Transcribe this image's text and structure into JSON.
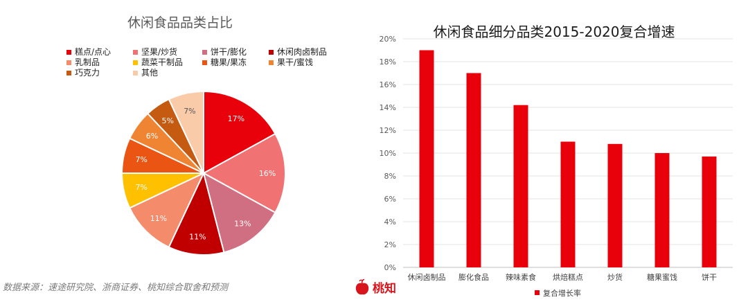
{
  "chart_data": [
    {
      "type": "pie",
      "title": "休闲食品品类占比",
      "categories": [
        "糕点/点心",
        "坚果/炒货",
        "饼干/膨化",
        "休闲肉卤制品",
        "乳制品",
        "蔬菜干制品",
        "糖果/果冻",
        "果干/蜜饯",
        "巧克力",
        "其他"
      ],
      "values": [
        17,
        16,
        13,
        11,
        11,
        7,
        7,
        6,
        5,
        7
      ],
      "data_labels": [
        "17%",
        "16%",
        "13%",
        "11%",
        "11%",
        "7%",
        "7%",
        "6%",
        "5%",
        "7%"
      ],
      "colors": [
        "#e8000b",
        "#f07272",
        "#d16f82",
        "#c00000",
        "#f48b6b",
        "#ffc000",
        "#ea5513",
        "#ef8533",
        "#c55a11",
        "#f9cba9"
      ],
      "legend_position": "top"
    },
    {
      "type": "bar",
      "title": "休闲食品细分品类2015-2020复合增速",
      "categories": [
        "休闲卤制品",
        "膨化食品",
        "辣味素食",
        "烘焙糕点",
        "炒货",
        "糖果蜜饯",
        "饼干"
      ],
      "series": [
        {
          "name": "复合增长率",
          "values": [
            19,
            17,
            14.2,
            11,
            10.8,
            10,
            9.7
          ],
          "color": "#e8000b"
        }
      ],
      "ylim": [
        0,
        20
      ],
      "yticks": [
        "0%",
        "2%",
        "4%",
        "6%",
        "8%",
        "10%",
        "12%",
        "14%",
        "16%",
        "18%",
        "20%"
      ],
      "grid": true,
      "legend_position": "bottom"
    }
  ],
  "footer": {
    "source": "数据来源：速途研究院、浙商证券、桃知综合取舍和预测",
    "logo_text": "桃知",
    "logo_icon": "peach-icon",
    "logo_color": "#d8141c"
  }
}
